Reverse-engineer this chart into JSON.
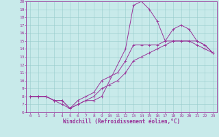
{
  "xlabel": "Windchill (Refroidissement éolien,°C)",
  "ylabel": "",
  "xlim": [
    -0.5,
    23.5
  ],
  "ylim": [
    6,
    20
  ],
  "xticks": [
    0,
    1,
    2,
    3,
    4,
    5,
    6,
    7,
    8,
    9,
    10,
    11,
    12,
    13,
    14,
    15,
    16,
    17,
    18,
    19,
    20,
    21,
    22,
    23
  ],
  "yticks": [
    6,
    7,
    8,
    9,
    10,
    11,
    12,
    13,
    14,
    15,
    16,
    17,
    18,
    19,
    20
  ],
  "bg_color": "#c8eaea",
  "line_color": "#993399",
  "grid_color": "#99cccc",
  "line1_x": [
    0,
    1,
    2,
    3,
    4,
    5,
    6,
    7,
    8,
    9,
    12,
    13,
    14,
    15,
    16,
    17,
    18,
    19,
    20,
    21,
    22,
    23
  ],
  "line1_y": [
    8.0,
    8.0,
    8.0,
    7.5,
    7.5,
    6.5,
    7.0,
    7.5,
    7.5,
    8.0,
    14.0,
    19.5,
    20.0,
    19.0,
    17.5,
    15.0,
    16.5,
    17.0,
    16.5,
    15.0,
    14.5,
    13.5
  ],
  "line2_x": [
    0,
    1,
    2,
    3,
    4,
    5,
    6,
    7,
    8,
    9,
    10,
    11,
    12,
    13,
    14,
    15,
    16,
    17,
    18,
    19,
    20,
    21,
    22,
    23
  ],
  "line2_y": [
    8.0,
    8.0,
    8.0,
    7.5,
    7.5,
    6.5,
    7.5,
    8.0,
    8.5,
    10.0,
    10.5,
    11.0,
    12.5,
    14.5,
    14.5,
    14.5,
    14.5,
    15.0,
    15.0,
    15.0,
    15.0,
    15.0,
    14.5,
    13.5
  ],
  "line3_x": [
    0,
    1,
    2,
    3,
    4,
    5,
    6,
    7,
    8,
    9,
    10,
    11,
    12,
    13,
    14,
    15,
    16,
    17,
    18,
    19,
    20,
    21,
    22,
    23
  ],
  "line3_y": [
    8.0,
    8.0,
    8.0,
    7.5,
    7.0,
    6.5,
    7.0,
    7.5,
    8.0,
    9.0,
    9.5,
    10.0,
    11.0,
    12.5,
    13.0,
    13.5,
    14.0,
    14.5,
    15.0,
    15.0,
    15.0,
    14.5,
    14.0,
    13.5
  ],
  "tick_fontsize": 4.5,
  "xlabel_fontsize": 5.5,
  "linewidth": 0.7,
  "markersize": 2.5
}
